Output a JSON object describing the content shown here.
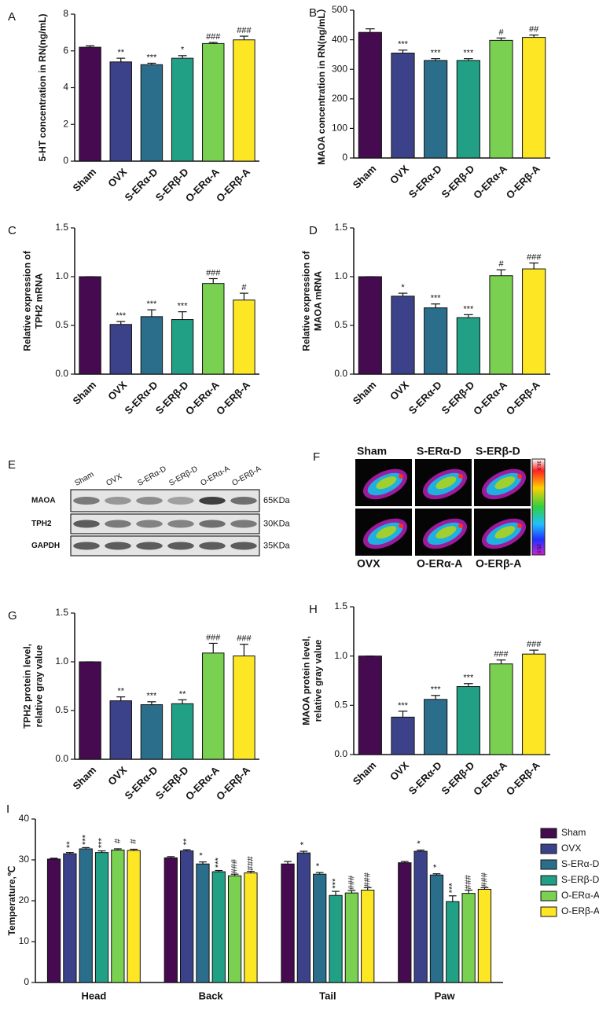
{
  "chart_data": [
    {
      "panel": "A",
      "type": "bar",
      "ylabel": "5-HT concentration in RN(ng/mL)",
      "categories": [
        "Sham",
        "OVX",
        "S-ERα-D",
        "S-ERβ-D",
        "O-ERα-A",
        "O-ERβ-A"
      ],
      "values": [
        6.2,
        5.4,
        5.25,
        5.6,
        6.4,
        6.6
      ],
      "errors": [
        0.08,
        0.2,
        0.08,
        0.14,
        0.06,
        0.2
      ],
      "annotations": [
        null,
        "**",
        "***",
        "*",
        "###",
        "###"
      ],
      "colors": [
        "#450a4f",
        "#3c4289",
        "#2a6e8c",
        "#22a085",
        "#7ad151",
        "#fde725"
      ],
      "ylim": [
        0,
        8
      ],
      "yticks": [
        0,
        2,
        4,
        6,
        8
      ]
    },
    {
      "panel": "B",
      "type": "bar",
      "ylabel": "MAOA concentration in RN(ng/mL）",
      "categories": [
        "Sham",
        "OVX",
        "S-ERα-D",
        "S-ERβ-D",
        "O-ERα-A",
        "O-ERβ-A"
      ],
      "values": [
        425,
        355,
        330,
        330,
        398,
        408
      ],
      "errors": [
        12,
        10,
        6,
        6,
        8,
        8
      ],
      "annotations": [
        null,
        "***",
        "***",
        "***",
        "#",
        "##"
      ],
      "colors": [
        "#450a4f",
        "#3c4289",
        "#2a6e8c",
        "#22a085",
        "#7ad151",
        "#fde725"
      ],
      "ylim": [
        0,
        500
      ],
      "yticks": [
        0,
        100,
        200,
        300,
        400,
        500
      ]
    },
    {
      "panel": "C",
      "type": "bar",
      "ylabel": [
        "Relative expression of",
        "TPH2 mRNA"
      ],
      "categories": [
        "Sham",
        "OVX",
        "S-ERα-D",
        "S-ERβ-D",
        "O-ERα-A",
        "O-ERβ-A"
      ],
      "values": [
        1.0,
        0.51,
        0.59,
        0.56,
        0.93,
        0.76
      ],
      "errors": [
        0.0,
        0.03,
        0.07,
        0.08,
        0.05,
        0.07
      ],
      "annotations": [
        null,
        "***",
        "***",
        "***",
        "###",
        "#"
      ],
      "colors": [
        "#450a4f",
        "#3c4289",
        "#2a6e8c",
        "#22a085",
        "#7ad151",
        "#fde725"
      ],
      "ylim": [
        0,
        1.5
      ],
      "yticks": [
        {
          "value": 0,
          "label": "0.0"
        },
        0.5,
        {
          "value": 1,
          "label": "1.0"
        },
        1.5
      ]
    },
    {
      "panel": "D",
      "type": "bar",
      "ylabel": [
        "Relative expression of",
        "MAOA mRNA"
      ],
      "categories": [
        "Sham",
        "OVX",
        "S-ERα-D",
        "S-ERβ-D",
        "O-ERα-A",
        "O-ERβ-A"
      ],
      "values": [
        1.0,
        0.8,
        0.68,
        0.58,
        1.01,
        1.08
      ],
      "errors": [
        0.0,
        0.03,
        0.04,
        0.03,
        0.06,
        0.06
      ],
      "annotations": [
        null,
        "*",
        "***",
        "***",
        "#",
        "###"
      ],
      "colors": [
        "#450a4f",
        "#3c4289",
        "#2a6e8c",
        "#22a085",
        "#7ad151",
        "#fde725"
      ],
      "ylim": [
        0,
        1.5
      ],
      "yticks": [
        {
          "value": 0,
          "label": "0.0"
        },
        0.5,
        {
          "value": 1,
          "label": "1.0"
        },
        1.5
      ]
    },
    {
      "panel": "G",
      "type": "bar",
      "ylabel": [
        "TPH2 protein level,",
        "relative gray value"
      ],
      "categories": [
        "Sham",
        "OVX",
        "S-ERα-D",
        "S-ERβ-D",
        "O-ERα-A",
        "O-ERβ-A"
      ],
      "values": [
        1.0,
        0.6,
        0.56,
        0.57,
        1.09,
        1.06
      ],
      "errors": [
        0.0,
        0.04,
        0.03,
        0.04,
        0.1,
        0.12
      ],
      "annotations": [
        null,
        "**",
        "***",
        "**",
        "###",
        "###"
      ],
      "colors": [
        "#450a4f",
        "#3c4289",
        "#2a6e8c",
        "#22a085",
        "#7ad151",
        "#fde725"
      ],
      "ylim": [
        0,
        1.5
      ],
      "yticks": [
        {
          "value": 0,
          "label": "0.0"
        },
        0.5,
        {
          "value": 1,
          "label": "1.0"
        },
        1.5
      ]
    },
    {
      "panel": "H",
      "type": "bar",
      "ylabel": [
        "MAOA protein level,",
        "relative gray value"
      ],
      "categories": [
        "Sham",
        "OVX",
        "S-ERα-D",
        "S-ERβ-D",
        "O-ERα-A",
        "O-ERβ-A"
      ],
      "values": [
        1.0,
        0.38,
        0.56,
        0.69,
        0.92,
        1.02
      ],
      "errors": [
        0.0,
        0.06,
        0.04,
        0.03,
        0.04,
        0.04
      ],
      "annotations": [
        null,
        "***",
        "***",
        "***",
        "###",
        "###"
      ],
      "colors": [
        "#450a4f",
        "#3c4289",
        "#2a6e8c",
        "#22a085",
        "#7ad151",
        "#fde725"
      ],
      "ylim": [
        0,
        1.5
      ],
      "yticks": [
        {
          "value": 0,
          "label": "0.0"
        },
        0.5,
        {
          "value": 1,
          "label": "1.0"
        },
        1.5
      ]
    },
    {
      "panel": "I",
      "type": "grouped_bar",
      "ylabel": "Temperature,℃",
      "categories": [
        "Head",
        "Back",
        "Tail",
        "Paw"
      ],
      "legend": "right",
      "ylim": [
        0,
        40
      ],
      "yticks": [
        0,
        10,
        20,
        30,
        40
      ],
      "series": [
        {
          "name": "Sham",
          "color": "#450a4f",
          "values": [
            30.2,
            30.5,
            29.0,
            29.3
          ],
          "errors": [
            0.2,
            0.3,
            0.6,
            0.3
          ],
          "annotations": [
            null,
            null,
            null,
            null
          ]
        },
        {
          "name": "OVX",
          "color": "#3c4289",
          "values": [
            31.5,
            32.2,
            31.7,
            32.1
          ],
          "errors": [
            0.3,
            0.3,
            0.4,
            0.3
          ],
          "annotations": [
            "**",
            "**",
            "*",
            "*"
          ]
        },
        {
          "name": "S-ERα-D",
          "color": "#2a6e8c",
          "values": [
            32.7,
            29.0,
            26.5,
            26.3
          ],
          "errors": [
            0.3,
            0.5,
            0.4,
            0.3
          ],
          "annotations": [
            "***",
            "*",
            "*",
            "*"
          ]
        },
        {
          "name": "S-ERβ-D",
          "color": "#22a085",
          "values": [
            31.8,
            27.1,
            21.3,
            19.8
          ],
          "errors": [
            0.4,
            0.3,
            1.0,
            1.4
          ],
          "annotations": [
            "***",
            "***",
            "***",
            "***"
          ]
        },
        {
          "name": "O-ERα-A",
          "color": "#7ad151",
          "values": [
            32.4,
            26.1,
            21.9,
            21.8
          ],
          "errors": [
            0.3,
            0.4,
            0.6,
            0.8
          ],
          "annotations": [
            "#",
            "###",
            "###",
            "###"
          ]
        },
        {
          "name": "O-ERβ-A",
          "color": "#fde725",
          "values": [
            32.3,
            26.8,
            22.6,
            22.8
          ],
          "errors": [
            0.3,
            0.4,
            0.6,
            0.4
          ],
          "annotations": [
            "#",
            "###",
            "###",
            "###"
          ]
        }
      ]
    }
  ],
  "blot": {
    "panel": "E",
    "lanes": [
      "Sham",
      "OVX",
      "S-ERα-D",
      "S-ERβ-D",
      "O-ERα-A",
      "O-ERβ-A"
    ],
    "rows": [
      {
        "name": "MAOA",
        "size": "65KDa"
      },
      {
        "name": "TPH2",
        "size": "30KDa"
      },
      {
        "name": "GAPDH",
        "size": "35KDa"
      }
    ]
  },
  "thermal": {
    "panel": "F",
    "groups": [
      "Sham",
      "S-ERα-D",
      "S-ERβ-D",
      "OVX",
      "O-ERα-A",
      "O-ERβ-A"
    ],
    "scale": [
      "38.0",
      "25.0"
    ]
  }
}
